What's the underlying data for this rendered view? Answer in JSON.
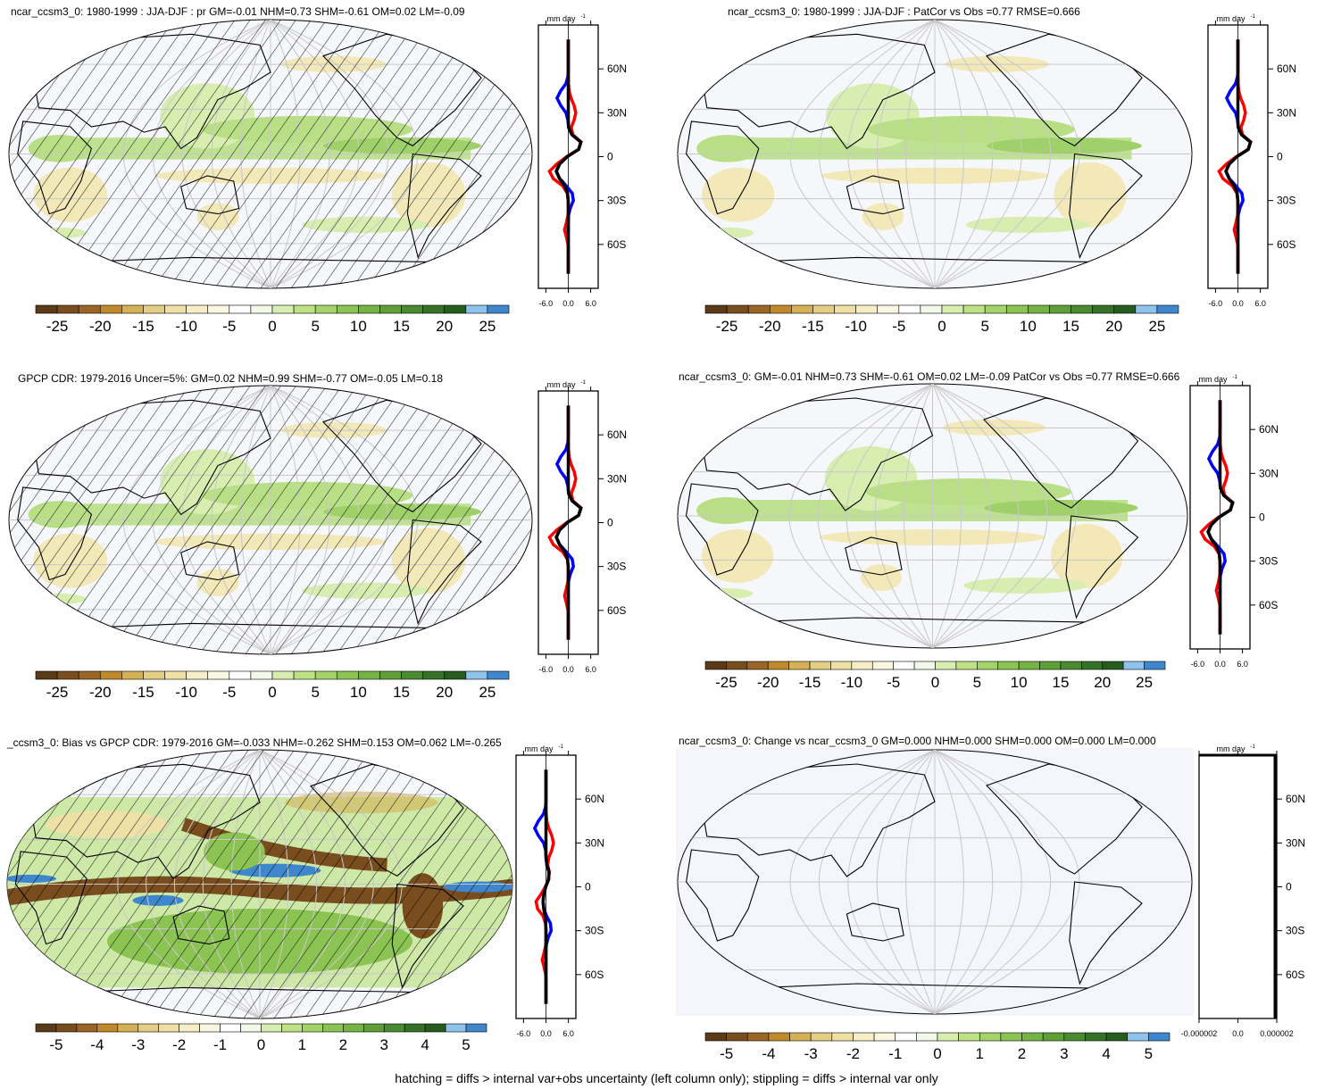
{
  "panels": [
    {
      "title": "ncar_ccsm3_0: 1980-1999 : JJA-DJF : pr GM=-0.01 NHM=0.73 SHM=-0.61 OM=0.02 LM=-0.09",
      "cbar_labels": [
        "-25",
        "-20",
        "-15",
        "-10",
        "-5",
        "0",
        "5",
        "10",
        "15",
        "20",
        "25"
      ],
      "zonal_xticks": [
        "-6.0",
        "0.0",
        "6.0"
      ],
      "zonal_unit": "mm day",
      "zonal_unit_sup": "-1",
      "lat_labels": [
        "60N",
        "30N",
        "0",
        "30S",
        "60S"
      ],
      "hatched": true,
      "style": "model"
    },
    {
      "title": "ncar_ccsm3_0: 1980-1999 : JJA-DJF : PatCor vs Obs =0.77 RMSE=0.666",
      "cbar_labels": [
        "-25",
        "-20",
        "-15",
        "-10",
        "-5",
        "0",
        "5",
        "10",
        "15",
        "20",
        "25"
      ],
      "zonal_xticks": [
        "-6.0",
        "0.0",
        "6.0"
      ],
      "zonal_unit": "mm day",
      "zonal_unit_sup": "-1",
      "lat_labels": [
        "60N",
        "30N",
        "0",
        "30S",
        "60S"
      ],
      "hatched": false,
      "style": "model"
    },
    {
      "title": "GPCP CDR: 1979-2016 Uncer=5%: GM=0.02 NHM=0.99 SHM=-0.77 OM=-0.05 LM=0.18",
      "cbar_labels": [
        "-25",
        "-20",
        "-15",
        "-10",
        "-5",
        "0",
        "5",
        "10",
        "15",
        "20",
        "25"
      ],
      "zonal_xticks": [
        "-6.0",
        "0.0",
        "6.0"
      ],
      "zonal_unit": "mm day",
      "zonal_unit_sup": "-1",
      "lat_labels": [
        "60N",
        "30N",
        "0",
        "30S",
        "60S"
      ],
      "hatched": true,
      "style": "obs"
    },
    {
      "title": "ncar_ccsm3_0: GM=-0.01 NHM=0.73 SHM=-0.61 OM=0.02 LM=-0.09 PatCor vs Obs =0.77 RMSE=0.666",
      "cbar_labels": [
        "-25",
        "-20",
        "-15",
        "-10",
        "-5",
        "0",
        "5",
        "10",
        "15",
        "20",
        "25"
      ],
      "zonal_xticks": [
        "-6.0",
        "0.0",
        "6.0"
      ],
      "zonal_unit": "mm day",
      "zonal_unit_sup": "-1",
      "lat_labels": [
        "60N",
        "30N",
        "0",
        "30S",
        "60S"
      ],
      "hatched": false,
      "style": "model"
    },
    {
      "title": "_ccsm3_0: Bias vs GPCP CDR: 1979-2016 GM=-0.033 NHM=-0.262 SHM=0.153 OM=0.062 LM=-0.265",
      "cbar_labels": [
        "-5",
        "-4",
        "-3",
        "-2",
        "-1",
        "0",
        "1",
        "2",
        "3",
        "4",
        "5"
      ],
      "zonal_xticks": [
        "-6.0",
        "0.0",
        "6.0"
      ],
      "zonal_unit": "mm day",
      "zonal_unit_sup": "-1",
      "lat_labels": [
        "60N",
        "30N",
        "0",
        "30S",
        "60S"
      ],
      "hatched": true,
      "style": "bias"
    },
    {
      "title": "ncar_ccsm3_0: Change vs ncar_ccsm3_0 GM=0.000 NHM=0.000 SHM=0.000 OM=0.000 LM=0.000",
      "cbar_labels": [
        "-5",
        "-4",
        "-3",
        "-2",
        "-1",
        "0",
        "1",
        "2",
        "3",
        "4",
        "5"
      ],
      "zonal_xticks": [
        "-0.000002",
        "0.0",
        "0.000002"
      ],
      "zonal_unit": "mm day",
      "zonal_unit_sup": "-1",
      "lat_labels": [
        "60N",
        "30N",
        "0",
        "30S",
        "60S"
      ],
      "hatched": false,
      "style": "none"
    }
  ],
  "colorbar_colors": [
    "#5a3a17",
    "#7a4d1e",
    "#9a6526",
    "#c08a2c",
    "#d6b054",
    "#e4cd85",
    "#efe0a6",
    "#f6eec6",
    "#fbf6e1",
    "#ffffff",
    "#f2f9e8",
    "#d8eeb1",
    "#bde184",
    "#a4d36a",
    "#8cc454",
    "#74b344",
    "#5e9f39",
    "#4a8a30",
    "#357127",
    "#265d1f",
    "#8fc3ec",
    "#3f87cd"
  ],
  "zonal_colors": {
    "model": "#0000ff",
    "obs": "#ff0000",
    "diff": "#000000"
  },
  "footer": "hatching = diffs > internal var+obs uncertainty (left column only); stippling = diffs > internal var only"
}
